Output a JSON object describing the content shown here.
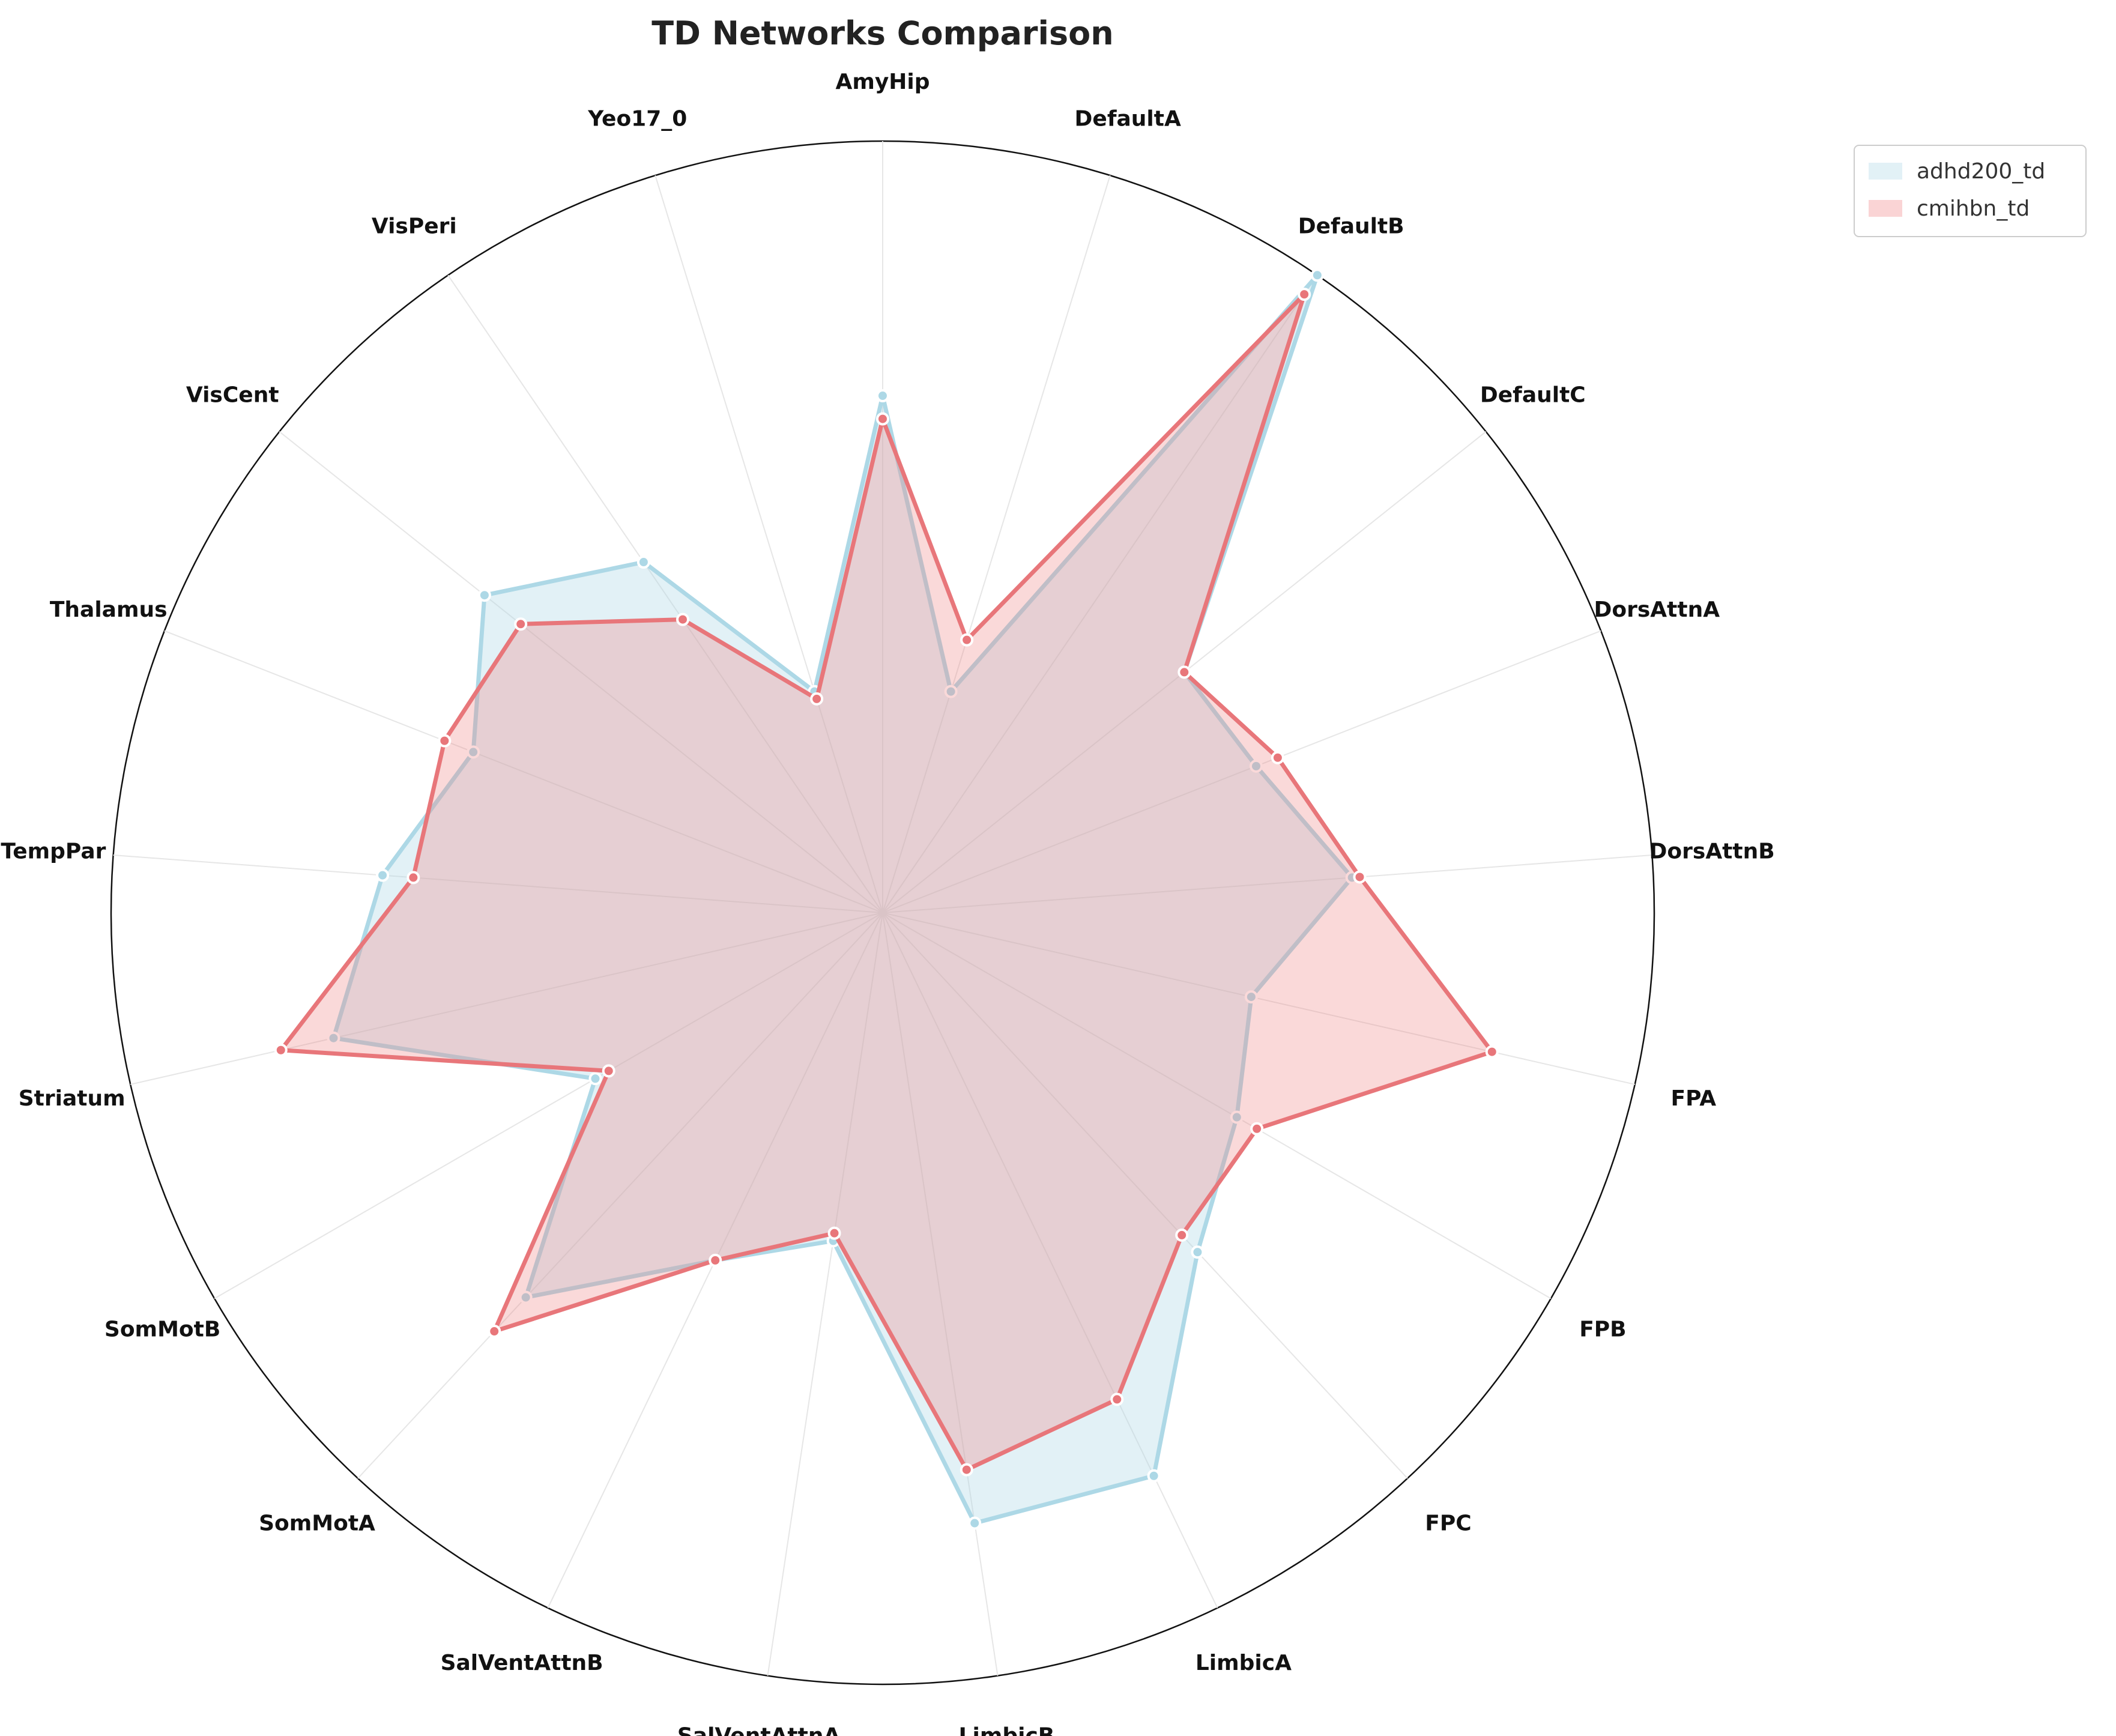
{
  "chart_data": {
    "type": "radar",
    "title": "TD Networks Comparison",
    "categories": [
      "AmyHip",
      "DefaultA",
      "DefaultB",
      "DefaultC",
      "DorsAttnA",
      "DorsAttnB",
      "FPA",
      "FPB",
      "FPC",
      "LimbicA",
      "LimbicB",
      "SalVentAttnA",
      "SalVentAttnB",
      "SomMotA",
      "SomMotB",
      "Striatum",
      "TempPar",
      "Thalamus",
      "VisCent",
      "VisPeri",
      "Yeo17_0"
    ],
    "rlim": [
      0,
      1
    ],
    "grid": true,
    "legend_position": "top-right",
    "series": [
      {
        "name": "adhd200_td",
        "color": "#add8e6",
        "values": [
          0.67,
          0.3,
          1.0,
          0.5,
          0.52,
          0.61,
          0.49,
          0.53,
          0.6,
          0.81,
          0.8,
          0.43,
          0.5,
          0.68,
          0.43,
          0.73,
          0.65,
          0.57,
          0.66,
          0.55,
          0.3
        ]
      },
      {
        "name": "cmihbn_td",
        "color": "#e8767a",
        "values": [
          0.64,
          0.37,
          0.97,
          0.5,
          0.55,
          0.62,
          0.81,
          0.56,
          0.57,
          0.7,
          0.73,
          0.42,
          0.5,
          0.74,
          0.41,
          0.8,
          0.61,
          0.61,
          0.6,
          0.46,
          0.29
        ]
      }
    ]
  }
}
